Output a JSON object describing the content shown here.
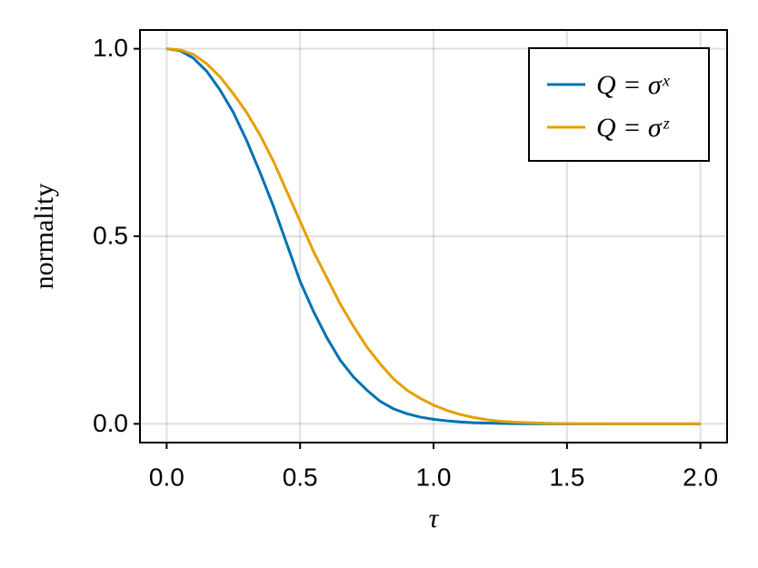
{
  "chart_data": {
    "type": "line",
    "x_label": "τ",
    "y_label": "normality",
    "x": [
      0,
      0.05,
      0.1,
      0.15,
      0.2,
      0.25,
      0.3,
      0.35,
      0.4,
      0.45,
      0.5,
      0.55,
      0.6,
      0.65,
      0.7,
      0.75,
      0.8,
      0.85,
      0.9,
      0.95,
      1.0,
      1.05,
      1.1,
      1.15,
      1.2,
      1.25,
      1.3,
      1.35,
      1.4,
      1.45,
      1.5,
      1.55,
      1.6,
      1.65,
      1.7,
      1.75,
      1.8,
      1.85,
      1.9,
      1.95,
      2.0
    ],
    "series": [
      {
        "name": "Q = σˣ",
        "color": "#0072b2",
        "values": [
          1.0,
          0.995,
          0.975,
          0.94,
          0.89,
          0.83,
          0.755,
          0.67,
          0.58,
          0.48,
          0.38,
          0.3,
          0.23,
          0.17,
          0.125,
          0.09,
          0.06,
          0.04,
          0.027,
          0.018,
          0.012,
          0.008,
          0.005,
          0.003,
          0.002,
          0.0012,
          0.0007,
          0.0004,
          0.0002,
          0.0001,
          0,
          0,
          0,
          0,
          0,
          0,
          0,
          0,
          0,
          0,
          0
        ]
      },
      {
        "name": "Q = σᶻ",
        "color": "#e69f00",
        "values": [
          1.0,
          0.997,
          0.985,
          0.96,
          0.925,
          0.88,
          0.83,
          0.77,
          0.7,
          0.62,
          0.54,
          0.46,
          0.39,
          0.32,
          0.26,
          0.205,
          0.16,
          0.12,
          0.09,
          0.068,
          0.05,
          0.036,
          0.025,
          0.017,
          0.011,
          0.007,
          0.0045,
          0.003,
          0.002,
          0.001,
          0.0006,
          0.0003,
          0.0002,
          0.0001,
          0,
          0,
          0,
          0,
          0,
          0,
          0
        ]
      }
    ],
    "xlim": [
      -0.1,
      2.1
    ],
    "ylim": [
      -0.05,
      1.05
    ],
    "xticks": [
      {
        "value": 0,
        "label": "0.0"
      },
      0.5,
      {
        "value": 1,
        "label": "1.0"
      },
      1.5,
      {
        "value": 2,
        "label": "2.0"
      }
    ],
    "yticks": [
      {
        "value": 0,
        "label": "0.0"
      },
      0.5,
      {
        "value": 1,
        "label": "1.0"
      }
    ],
    "grid": true,
    "legend": "top-right"
  }
}
